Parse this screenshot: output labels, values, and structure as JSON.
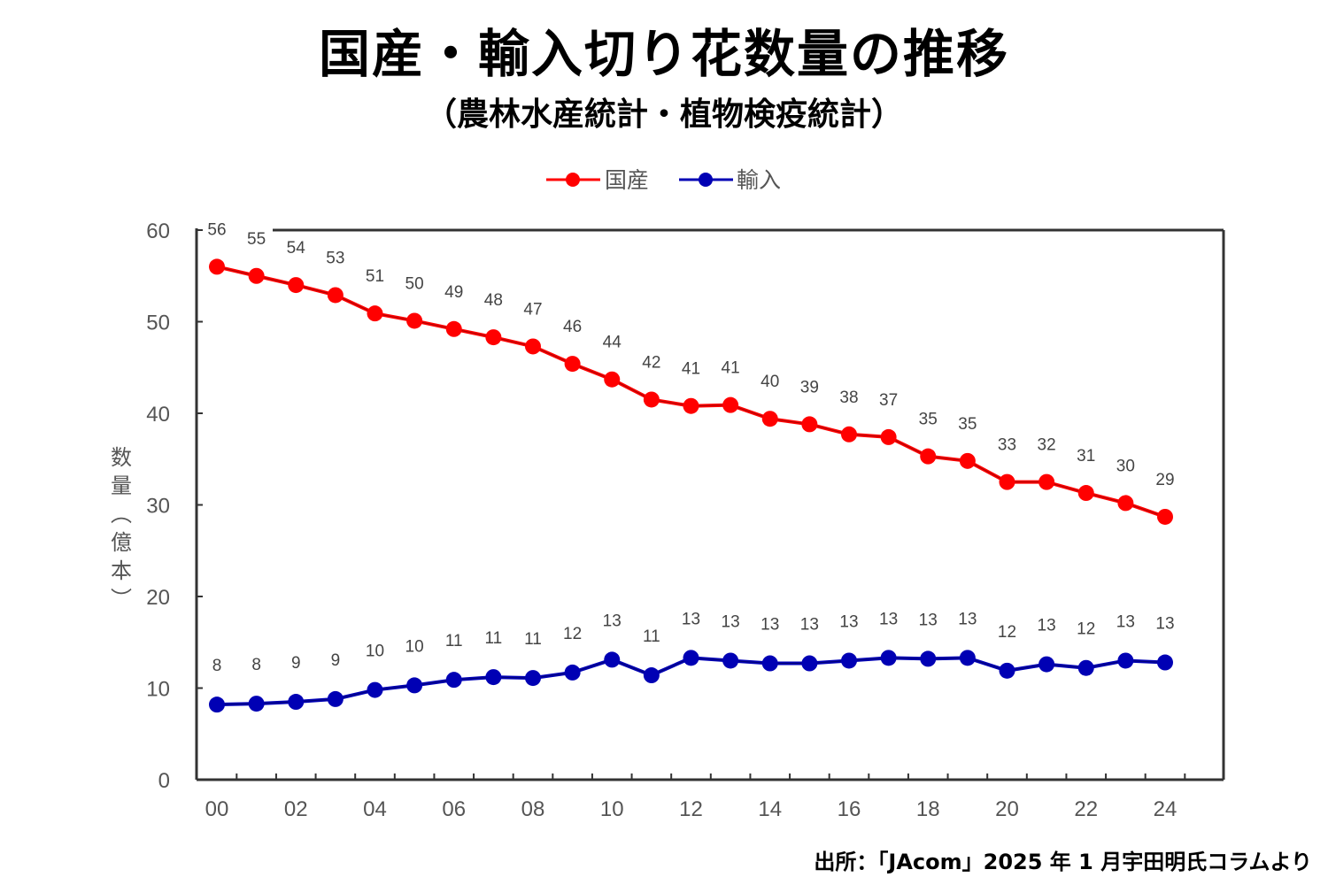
{
  "title": "国産・輸入切り花数量の推移",
  "subtitle": "（農林水産統計・植物検疫統計）",
  "source": "出所：「JAcom」2025 年 1 月宇田明氏コラムより",
  "chart_data": {
    "type": "line",
    "title": "国産・輸入切り花数量の推移",
    "subtitle": "（農林水産統計・植物検疫統計）",
    "xlabel": "",
    "ylabel": "数量（億本）",
    "ylim": [
      0,
      60
    ],
    "yticks": [
      0,
      10,
      20,
      30,
      40,
      50,
      60
    ],
    "x": [
      "00",
      "01",
      "02",
      "03",
      "04",
      "05",
      "06",
      "07",
      "08",
      "09",
      "10",
      "11",
      "12",
      "13",
      "14",
      "15",
      "16",
      "17",
      "18",
      "19",
      "20",
      "21",
      "22",
      "23",
      "24"
    ],
    "xtick_labels": [
      "00",
      "02",
      "04",
      "06",
      "08",
      "10",
      "12",
      "14",
      "16",
      "18",
      "20",
      "22",
      "24"
    ],
    "grid": false,
    "legend": {
      "placement": "top-center",
      "entries": [
        "国産",
        "輸入"
      ]
    },
    "series": [
      {
        "name": "国産",
        "color": "#ff0000",
        "values": [
          56,
          55,
          54,
          53,
          51,
          50,
          49,
          48,
          47,
          46,
          44,
          42,
          41,
          41,
          40,
          39,
          38,
          37,
          35,
          35,
          33,
          32,
          31,
          30,
          29
        ],
        "plotted_values": [
          56.0,
          55.0,
          54.0,
          52.9,
          50.9,
          50.1,
          49.2,
          48.3,
          47.3,
          45.4,
          43.7,
          41.5,
          40.8,
          40.9,
          39.4,
          38.8,
          37.7,
          37.4,
          35.3,
          34.8,
          32.5,
          32.5,
          31.3,
          30.2,
          28.7
        ]
      },
      {
        "name": "輸入",
        "color": "#0000b4",
        "values": [
          8,
          8,
          9,
          9,
          10,
          10,
          11,
          11,
          11,
          12,
          13,
          11,
          13,
          13,
          13,
          13,
          13,
          13,
          13,
          13,
          12,
          13,
          12,
          13,
          13
        ],
        "plotted_values": [
          8.2,
          8.3,
          8.5,
          8.8,
          9.8,
          10.3,
          10.9,
          11.2,
          11.1,
          11.7,
          13.1,
          11.4,
          13.3,
          13.0,
          12.7,
          12.7,
          13.0,
          13.3,
          13.2,
          13.3,
          11.9,
          12.6,
          12.2,
          13.0,
          12.8
        ]
      }
    ]
  }
}
